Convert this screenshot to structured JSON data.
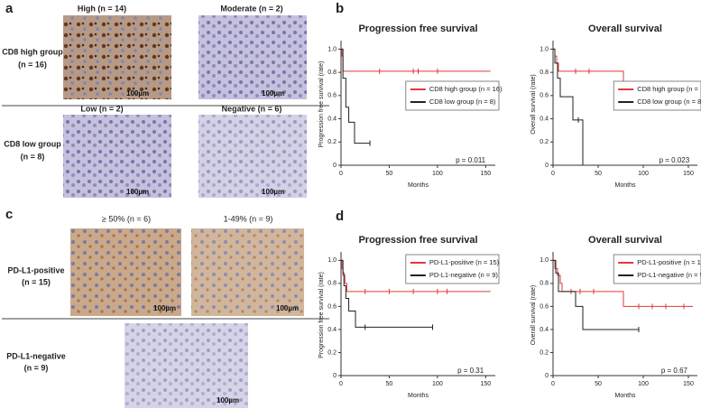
{
  "figure": {
    "panel_a": {
      "label": "a",
      "columns": [
        "High (n = 14)",
        "Moderate (n = 2)",
        "Low (n = 2)",
        "Negative (n = 6)"
      ],
      "rows": [
        [
          "CD8 high group",
          "(n = 16)"
        ],
        [
          "CD8 low group",
          "(n = 8)"
        ]
      ]
    },
    "panel_c": {
      "label": "c",
      "columns": [
        "≥ 50% (n = 6)",
        "1-49% (n = 9)"
      ],
      "rows": [
        [
          "PD-L1-positive",
          "(n = 15)"
        ],
        [
          "PD-L1-negative",
          "(n = 9)"
        ]
      ]
    },
    "panel_b": {
      "label": "b"
    },
    "panel_d": {
      "label": "d"
    },
    "scale_bar": "100µm"
  },
  "chart_data": [
    {
      "type": "line",
      "step": true,
      "title": "Progression free survival",
      "xlabel": "Months",
      "ylabel": "Progression free survival (rate)",
      "xlim": [
        0,
        160
      ],
      "ylim": [
        0,
        1.05
      ],
      "xticks": [
        0,
        50,
        100,
        150
      ],
      "yticks": [
        0,
        0.2,
        0.4,
        0.6,
        0.8,
        {
          "value": 1,
          "label": "1.0"
        }
      ],
      "annotation": "p = 0.011",
      "series": [
        {
          "name": "CD8 high group (n = 16)",
          "color": "#e03a3a",
          "x": [
            0,
            1,
            1,
            2,
            2,
            155
          ],
          "values": [
            1,
            1,
            0.94,
            0.94,
            0.81,
            0.81
          ],
          "censored_x": [
            40,
            75,
            80,
            100
          ],
          "censored_values": [
            0.81,
            0.81,
            0.81,
            0.81
          ]
        },
        {
          "name": "CD8 low group (n = 8)",
          "color": "#222222",
          "x": [
            0,
            2,
            2,
            5,
            5,
            8,
            8,
            14,
            14,
            30
          ],
          "values": [
            1,
            1,
            0.75,
            0.75,
            0.5,
            0.5,
            0.37,
            0.37,
            0.19,
            0.19
          ],
          "censored_x": [
            30
          ],
          "censored_values": [
            0.19
          ]
        }
      ]
    },
    {
      "type": "line",
      "step": true,
      "title": "Overall survival",
      "xlabel": "Months",
      "ylabel": "Overall survival (rate)",
      "xlim": [
        0,
        160
      ],
      "ylim": [
        0,
        1.05
      ],
      "xticks": [
        0,
        50,
        100,
        150
      ],
      "yticks": [
        0,
        0.2,
        0.4,
        0.6,
        0.8,
        {
          "value": 1,
          "label": "1.0"
        }
      ],
      "annotation": "p = 0.023",
      "series": [
        {
          "name": "CD8 high group (n = 16)",
          "color": "#e03a3a",
          "x": [
            0,
            2,
            2,
            4,
            4,
            6,
            6,
            78,
            78,
            155
          ],
          "values": [
            1,
            1,
            0.94,
            0.94,
            0.88,
            0.88,
            0.81,
            0.81,
            0.7,
            0.7
          ],
          "censored_x": [
            25,
            40,
            95,
            100,
            110
          ],
          "censored_values": [
            0.81,
            0.81,
            0.7,
            0.7,
            0.7
          ]
        },
        {
          "name": "CD8 low group (n = 8)",
          "color": "#222222",
          "x": [
            0,
            2,
            2,
            5,
            5,
            8,
            8,
            22,
            22,
            33,
            33
          ],
          "values": [
            1,
            1,
            0.88,
            0.88,
            0.75,
            0.75,
            0.59,
            0.59,
            0.39,
            0.39,
            0
          ],
          "censored_x": [
            28
          ],
          "censored_values": [
            0.39
          ]
        }
      ]
    },
    {
      "type": "line",
      "step": true,
      "title": "Progression free survival",
      "xlabel": "Months",
      "ylabel": "Progression free survival (rate)",
      "xlim": [
        0,
        160
      ],
      "ylim": [
        0,
        1.05
      ],
      "xticks": [
        0,
        50,
        100,
        150
      ],
      "yticks": [
        0,
        0.2,
        0.4,
        0.6,
        0.8,
        {
          "value": 1,
          "label": "1.0"
        }
      ],
      "annotation": "p = 0.31",
      "series": [
        {
          "name": "PD-L1-positive (n = 15)",
          "color": "#e03a3a",
          "x": [
            0,
            1,
            1,
            2,
            2,
            4,
            4,
            6,
            6,
            155
          ],
          "values": [
            1,
            1,
            0.93,
            0.93,
            0.87,
            0.87,
            0.8,
            0.8,
            0.73,
            0.73
          ],
          "censored_x": [
            25,
            50,
            75,
            100,
            110
          ],
          "censored_values": [
            0.73,
            0.73,
            0.73,
            0.73,
            0.73
          ]
        },
        {
          "name": "PD-L1-negative (n = 9)",
          "color": "#222222",
          "x": [
            0,
            2,
            2,
            3,
            3,
            5,
            5,
            8,
            8,
            15,
            15,
            95
          ],
          "values": [
            1,
            1,
            0.89,
            0.89,
            0.78,
            0.78,
            0.67,
            0.67,
            0.56,
            0.56,
            0.42,
            0.42
          ],
          "censored_x": [
            25,
            95
          ],
          "censored_values": [
            0.42,
            0.42
          ]
        }
      ]
    },
    {
      "type": "line",
      "step": true,
      "title": "Overall survival",
      "xlabel": "Months",
      "ylabel": "Overall survival (rate)",
      "xlim": [
        0,
        160
      ],
      "ylim": [
        0,
        1.05
      ],
      "xticks": [
        0,
        50,
        100,
        150
      ],
      "yticks": [
        0,
        0.2,
        0.4,
        0.6,
        0.8,
        {
          "value": 1,
          "label": "1.0"
        }
      ],
      "annotation": "p = 0.67",
      "series": [
        {
          "name": "PD-L1-positive (n = 15)",
          "color": "#e03a3a",
          "x": [
            0,
            2,
            2,
            5,
            5,
            8,
            8,
            10,
            10,
            78,
            78,
            155
          ],
          "values": [
            1,
            1,
            0.93,
            0.93,
            0.87,
            0.87,
            0.8,
            0.8,
            0.73,
            0.73,
            0.6,
            0.6
          ],
          "censored_x": [
            20,
            30,
            45,
            95,
            110,
            125,
            145
          ],
          "censored_values": [
            0.73,
            0.73,
            0.73,
            0.6,
            0.6,
            0.6,
            0.6
          ]
        },
        {
          "name": "PD-L1-negative (n = 9)",
          "color": "#222222",
          "x": [
            0,
            3,
            3,
            6,
            6,
            25,
            25,
            33,
            33,
            95
          ],
          "values": [
            1,
            1,
            0.89,
            0.89,
            0.73,
            0.73,
            0.6,
            0.6,
            0.4,
            0.4
          ],
          "censored_x": [
            95
          ],
          "censored_values": [
            0.4
          ]
        }
      ]
    }
  ]
}
